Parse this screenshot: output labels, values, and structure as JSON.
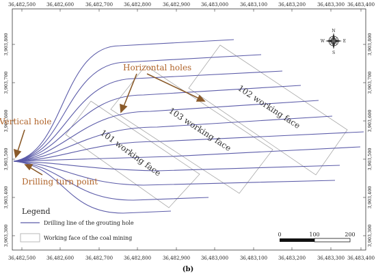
{
  "map": {
    "x_ticks": [
      "36,482,500",
      "36,482,600",
      "36,482,700",
      "36,482,800",
      "36,482,900",
      "36,483,000",
      "36,483,100",
      "36,483,200",
      "36,483,300",
      "36,483,400"
    ],
    "y_ticks": [
      "3,903,800",
      "3,903,700",
      "3,903,600",
      "3,903,500",
      "3,903,400",
      "3,903,300"
    ],
    "annotations": {
      "horizontal_holes": "Horizontal holes",
      "vertical_hole": "Vertical hole",
      "drilling_turn_point": "Drilling turn point"
    },
    "working_faces": [
      "101 working face",
      "103 working face",
      "102 working face"
    ],
    "compass": {
      "n": "N",
      "s": "S",
      "e": "E",
      "w": "W"
    },
    "legend": {
      "title": "Legend",
      "items": [
        {
          "label": "Drilling line of the grouting hole",
          "color": "#5a5aa8"
        },
        {
          "label": "Working face of the coal mining",
          "color": "#9a9a9a"
        }
      ]
    },
    "scale_bar": {
      "labels": [
        "0",
        "100",
        "200"
      ]
    },
    "caption": "(b)"
  },
  "colors": {
    "hole_line": "#5a5aa8",
    "face_outline": "#a8a8a8",
    "annotation": "#b0642a",
    "arrow": "#8a5a2a"
  }
}
